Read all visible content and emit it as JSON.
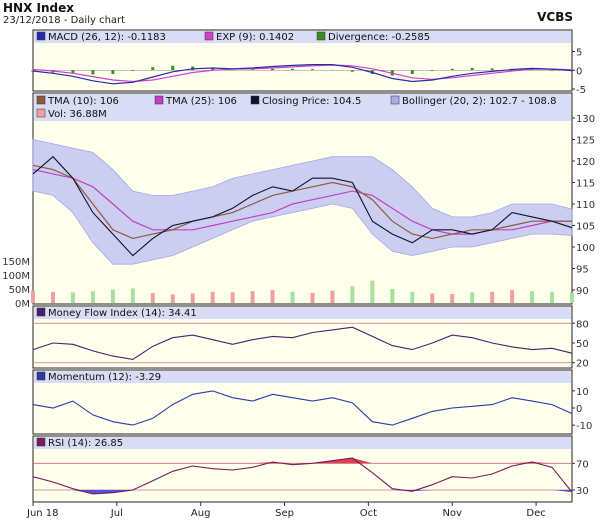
{
  "header": {
    "title": "HNX Index",
    "subtitle": "23/12/2018 - Daily chart",
    "brand": "VCBS"
  },
  "colors": {
    "plot_bg": "#ffffee",
    "legend_bg": "#d8dcf4",
    "band_fill": "#c6c9f2",
    "band_edge": "#9a9fe3",
    "close": "#101030",
    "tma10": "#8b5a3a",
    "tma25": "#c040c8",
    "macd": "#2a2aa8",
    "exp": "#d040c8",
    "divergence": "#3d8c1e",
    "vol_pos": "#f0a0a0",
    "vol_neg": "#a8e0a0",
    "mfi": "#4a1e6a",
    "momentum": "#2a3aa8",
    "rsi": "#7a1a5a",
    "rsi_over": "#e04050",
    "rsi_under": "#5050e0",
    "ref_line": "#cc7070"
  },
  "x_axis": {
    "labels": [
      "Jun 18",
      "Jul",
      "Aug",
      "Sep",
      "Oct",
      "Nov",
      "Dec"
    ]
  },
  "chart_data": [
    {
      "type": "line",
      "name": "MACD panel",
      "legend": [
        {
          "label": "MACD (26, 12): -0.1183",
          "color": "#2a2aa8"
        },
        {
          "label": "EXP (9): 0.1402",
          "color": "#d040c8"
        },
        {
          "label": "Divergence: -0.2585",
          "color": "#3d8c1e"
        }
      ],
      "yticks": [
        "5",
        "0",
        "-5"
      ],
      "ylim": [
        -5,
        7
      ],
      "x": [
        0,
        5,
        10,
        15,
        20,
        25,
        30,
        35,
        40,
        45,
        50,
        55,
        60,
        65,
        70,
        75,
        80,
        85,
        90,
        95,
        100,
        105,
        110,
        115,
        120,
        125,
        130,
        135
      ],
      "series": [
        {
          "key": "macd",
          "values": [
            -0.2,
            -0.8,
            -1.6,
            -2.8,
            -3.6,
            -3.2,
            -1.8,
            -0.4,
            0.4,
            0.6,
            0.4,
            0.6,
            1.0,
            1.3,
            1.5,
            1.5,
            0.8,
            -0.6,
            -2.2,
            -3.0,
            -2.6,
            -1.6,
            -0.8,
            -0.3,
            0.2,
            0.5,
            0.3,
            -0.1
          ]
        },
        {
          "key": "exp",
          "values": [
            0.2,
            -0.2,
            -0.8,
            -1.7,
            -2.6,
            -3.0,
            -2.6,
            -1.6,
            -0.6,
            0.0,
            0.3,
            0.4,
            0.6,
            0.9,
            1.2,
            1.4,
            1.2,
            0.4,
            -0.8,
            -2.0,
            -2.4,
            -2.0,
            -1.4,
            -0.8,
            -0.2,
            0.3,
            0.3,
            0.14
          ]
        }
      ]
    },
    {
      "type": "line",
      "name": "Price panel",
      "legend": [
        {
          "label": "TMA (10): 106",
          "color": "#8b5a3a"
        },
        {
          "label": "TMA (25): 106",
          "color": "#c040c8"
        },
        {
          "label": "Closing Price: 104.5",
          "color": "#101030"
        },
        {
          "label": "Bollinger (20, 2): 102.7 - 108.8",
          "color": "#a9ade9"
        },
        {
          "label": "Vol: 36.88M",
          "color": "#f0a0a0"
        }
      ],
      "yticks": [
        "130",
        "125",
        "120",
        "115",
        "110",
        "105",
        "100",
        "95",
        "90"
      ],
      "ylim": [
        90,
        130
      ],
      "volume_ticks": [
        "150M",
        "100M",
        "50M",
        "0M"
      ],
      "volume_lim": [
        0,
        200
      ],
      "x": [
        0,
        5,
        10,
        15,
        20,
        25,
        30,
        35,
        40,
        45,
        50,
        55,
        60,
        65,
        70,
        75,
        80,
        85,
        90,
        95,
        100,
        105,
        110,
        115,
        120,
        125,
        130,
        135
      ],
      "close": [
        117,
        121,
        116,
        108,
        103,
        98,
        102,
        105,
        106,
        107,
        109,
        112,
        114,
        113,
        116,
        116,
        115,
        106,
        103,
        101,
        104,
        104,
        103,
        104,
        108,
        107,
        106,
        104.5
      ],
      "tma10": [
        119,
        118,
        116,
        110,
        104,
        102,
        103,
        104,
        106,
        107,
        108,
        110,
        112,
        113,
        114,
        115,
        114,
        111,
        106,
        103,
        102,
        103,
        104,
        104,
        105,
        106,
        106,
        106
      ],
      "tma25": [
        118,
        117,
        116,
        114,
        110,
        106,
        104,
        104,
        104,
        105,
        106,
        107,
        108,
        110,
        111,
        112,
        113,
        112,
        109,
        106,
        104,
        103,
        103,
        104,
        104,
        105,
        106,
        106
      ],
      "bb_upper": [
        125,
        124,
        123,
        122,
        118,
        113,
        112,
        112,
        113,
        114,
        116,
        117,
        118,
        119,
        120,
        121,
        121,
        121,
        118,
        114,
        109,
        107,
        107,
        108,
        110,
        110,
        110,
        108.8
      ],
      "bb_lower": [
        113,
        112,
        108,
        101,
        96,
        96,
        97,
        98,
        100,
        102,
        104,
        106,
        107,
        108,
        109,
        110,
        109,
        103,
        99,
        98,
        99,
        100,
        100,
        101,
        102,
        103,
        103,
        102.7
      ],
      "volume": [
        44,
        40,
        38,
        42,
        48,
        52,
        36,
        30,
        34,
        40,
        38,
        42,
        46,
        40,
        36,
        44,
        60,
        80,
        50,
        40,
        34,
        32,
        38,
        40,
        46,
        42,
        40,
        36.88
      ]
    },
    {
      "type": "line",
      "name": "Money Flow Index panel",
      "legend": [
        {
          "label": "Money Flow Index (14): 34.41",
          "color": "#4a1e6a"
        }
      ],
      "yticks": [
        "80",
        "50",
        "20"
      ],
      "ylim": [
        15,
        85
      ],
      "x": [
        0,
        5,
        10,
        15,
        20,
        25,
        30,
        35,
        40,
        45,
        50,
        55,
        60,
        65,
        70,
        75,
        80,
        85,
        90,
        95,
        100,
        105,
        110,
        115,
        120,
        125,
        130,
        135
      ],
      "values": [
        40,
        50,
        48,
        38,
        30,
        25,
        45,
        58,
        62,
        55,
        48,
        55,
        60,
        58,
        66,
        70,
        74,
        60,
        46,
        40,
        50,
        62,
        58,
        50,
        44,
        40,
        42,
        34.41
      ],
      "ref_lines": [
        80,
        20
      ]
    },
    {
      "type": "line",
      "name": "Momentum panel",
      "legend": [
        {
          "label": "Momentum (12): -3.29",
          "color": "#2a3aa8"
        }
      ],
      "yticks": [
        "10",
        "0",
        "-10"
      ],
      "ylim": [
        -14,
        14
      ],
      "x": [
        0,
        5,
        10,
        15,
        20,
        25,
        30,
        35,
        40,
        45,
        50,
        55,
        60,
        65,
        70,
        75,
        80,
        85,
        90,
        95,
        100,
        105,
        110,
        115,
        120,
        125,
        130,
        135
      ],
      "values": [
        2,
        0,
        4,
        -4,
        -8,
        -10,
        -6,
        2,
        8,
        10,
        6,
        4,
        8,
        6,
        4,
        6,
        3,
        -8,
        -10,
        -6,
        -2,
        0,
        1,
        2,
        6,
        4,
        2,
        -3.29
      ]
    },
    {
      "type": "line",
      "name": "RSI panel",
      "legend": [
        {
          "label": "RSI (14): 26.85",
          "color": "#7a1a5a"
        }
      ],
      "yticks": [
        "70",
        "30"
      ],
      "ylim": [
        15,
        90
      ],
      "x": [
        0,
        5,
        10,
        15,
        20,
        25,
        30,
        35,
        40,
        45,
        50,
        55,
        60,
        65,
        70,
        75,
        80,
        85,
        90,
        95,
        100,
        105,
        110,
        115,
        120,
        125,
        130,
        135
      ],
      "values": [
        50,
        42,
        32,
        24,
        26,
        30,
        44,
        58,
        66,
        62,
        60,
        64,
        72,
        68,
        70,
        74,
        78,
        56,
        32,
        28,
        38,
        50,
        48,
        54,
        66,
        72,
        64,
        26.85
      ],
      "ref_lines": [
        70,
        30
      ]
    }
  ]
}
